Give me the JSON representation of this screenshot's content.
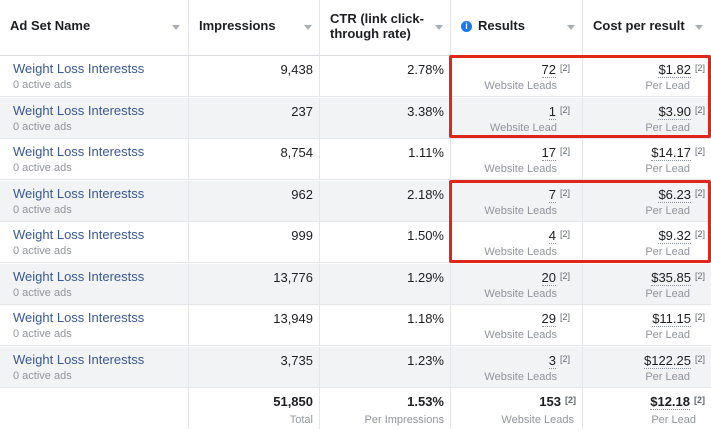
{
  "headers": {
    "ad_set_name": "Ad Set Name",
    "impressions": "Impressions",
    "ctr_line1": "CTR (link click-",
    "ctr_line2": "through rate)",
    "results": "Results",
    "cost_per_result": "Cost per result",
    "results_info_icon": "i"
  },
  "rows": [
    {
      "name": "Weight Loss Interestss",
      "sub": "0 active ads",
      "impressions": "9,438",
      "ctr": "2.78%",
      "results": "72",
      "results_label": "Website Leads",
      "cost": "$1.82",
      "cost_label": "Per Lead",
      "sup": "[2]"
    },
    {
      "name": "Weight Loss Interestss",
      "sub": "0 active ads",
      "impressions": "237",
      "ctr": "3.38%",
      "results": "1",
      "results_label": "Website Lead",
      "cost": "$3.90",
      "cost_label": "Per Lead",
      "sup": "[2]"
    },
    {
      "name": "Weight Loss Interestss",
      "sub": "0 active ads",
      "impressions": "8,754",
      "ctr": "1.11%",
      "results": "17",
      "results_label": "Website Leads",
      "cost": "$14.17",
      "cost_label": "Per Lead",
      "sup": "[2]"
    },
    {
      "name": "Weight Loss Interestss",
      "sub": "0 active ads",
      "impressions": "962",
      "ctr": "2.18%",
      "results": "7",
      "results_label": "Website Leads",
      "cost": "$6.23",
      "cost_label": "Per Lead",
      "sup": "[2]"
    },
    {
      "name": "Weight Loss Interestss",
      "sub": "0 active ads",
      "impressions": "999",
      "ctr": "1.50%",
      "results": "4",
      "results_label": "Website Leads",
      "cost": "$9.32",
      "cost_label": "Per Lead",
      "sup": "[2]"
    },
    {
      "name": "Weight Loss Interestss",
      "sub": "0 active ads",
      "impressions": "13,776",
      "ctr": "1.29%",
      "results": "20",
      "results_label": "Website Leads",
      "cost": "$35.85",
      "cost_label": "Per Lead",
      "sup": "[2]"
    },
    {
      "name": "Weight Loss Interestss",
      "sub": "0 active ads",
      "impressions": "13,949",
      "ctr": "1.18%",
      "results": "29",
      "results_label": "Website Leads",
      "cost": "$11.15",
      "cost_label": "Per Lead",
      "sup": "[2]"
    },
    {
      "name": "Weight Loss Interestss",
      "sub": "0 active ads",
      "impressions": "3,735",
      "ctr": "1.23%",
      "results": "3",
      "results_label": "Website Leads",
      "cost": "$122.25",
      "cost_label": "Per Lead",
      "sup": "[2]"
    }
  ],
  "totals": {
    "impressions": "51,850",
    "impressions_label": "Total",
    "ctr": "1.53%",
    "ctr_label": "Per Impressions",
    "results": "153",
    "results_label": "Website Leads",
    "cost": "$12.18",
    "cost_label": "Per Lead",
    "sup": "[2]"
  },
  "colors": {
    "highlight_box": "#e0261b",
    "link": "#385898",
    "alt_row": "#f2f3f5"
  }
}
